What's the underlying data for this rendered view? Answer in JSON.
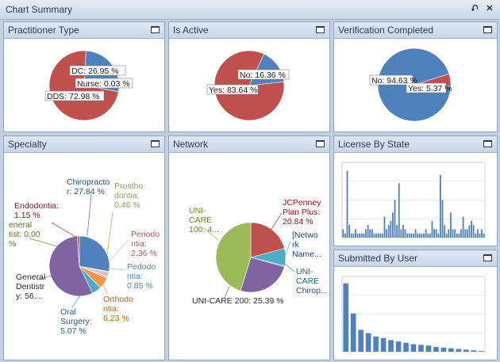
{
  "window": {
    "title": "Chart Summary",
    "pin_icon": "pin-icon",
    "close_icon": "close-icon"
  },
  "panels": {
    "practitioner": {
      "title": "Practitioner Type"
    },
    "active": {
      "title": "Is Active"
    },
    "verification": {
      "title": "Verification Completed"
    },
    "specialty": {
      "title": "Specialty"
    },
    "network": {
      "title": "Network"
    },
    "license": {
      "title": "License By State"
    },
    "submitted": {
      "title": "Submitted By User"
    }
  },
  "chart_data": [
    {
      "type": "pie",
      "panel": "Practitioner Type",
      "slices": [
        {
          "label": "DC: 26.95 %",
          "value": 26.95,
          "color": "#4f81bd"
        },
        {
          "label": "Nurse: 0.03 %",
          "value": 0.03,
          "color": "#9bbb59"
        },
        {
          "label": "DDS: 72.98 %",
          "value": 72.98,
          "color": "#c0504d"
        }
      ]
    },
    {
      "type": "pie",
      "panel": "Is Active",
      "slices": [
        {
          "label": "No: 16.36 %",
          "value": 16.36,
          "color": "#4f81bd"
        },
        {
          "label": "Yes: 83.64 %",
          "value": 83.64,
          "color": "#c0504d"
        }
      ]
    },
    {
      "type": "pie",
      "panel": "Verification Completed",
      "slices": [
        {
          "label": "No: 94.63 %",
          "value": 94.63,
          "color": "#4f81bd"
        },
        {
          "label": "Yes: 5.37 %",
          "value": 5.37,
          "color": "#c0504d"
        }
      ]
    },
    {
      "type": "pie",
      "panel": "Specialty",
      "slices": [
        {
          "label": [
            "Chiropracto",
            "r: 27.84 %"
          ],
          "value": 27.84,
          "color": "#4f81bd",
          "text_color": "#1f4e79"
        },
        {
          "label": [
            "Prostho",
            "dontia:",
            "0.46 %"
          ],
          "value": 0.46,
          "color": "#9bbb59",
          "text_color": "#8aa05a"
        },
        {
          "label": [
            "Periodo",
            "ntia:",
            "2.36 %"
          ],
          "value": 2.36,
          "color": "#e6b9b8",
          "text_color": "#b05a58"
        },
        {
          "label": [
            "Pedodo",
            "ntia:",
            "0.85 %"
          ],
          "value": 0.85,
          "color": "#93cddd",
          "text_color": "#4f81bd"
        },
        {
          "label": [
            "Orthodo",
            "ntia:",
            "6.23 %"
          ],
          "value": 6.23,
          "color": "#f79646",
          "text_color": "#c06000"
        },
        {
          "label": [
            "Oral",
            "Surgery:",
            "5.07 %"
          ],
          "value": 5.07,
          "color": "#4bacc6",
          "text_color": "#1f5c8a"
        },
        {
          "label": [
            "General",
            "Dentistr",
            "y: 56...."
          ],
          "value": 56.04,
          "color": "#8064a2",
          "text_color": "#2a2a2a"
        },
        {
          "label": [
            "eneral",
            "tist: 0.00",
            "%"
          ],
          "value": 0.0,
          "color": "#77933c",
          "text_color": "#5a7a1a"
        },
        {
          "label": [
            "Endodontia:",
            "1.15 %"
          ],
          "value": 1.15,
          "color": "#c0504d",
          "text_color": "#8a1010"
        }
      ]
    },
    {
      "type": "pie",
      "panel": "Network",
      "slices": [
        {
          "label": [
            "JCPenney",
            "Plan Plus:",
            "20.84 %"
          ],
          "value": 20.84,
          "color": "#c0504d",
          "text_color": "#a01010"
        },
        {
          "label": [
            "[Netwo",
            "rk",
            "Name..."
          ],
          "value": 8.0,
          "color": "#4bacc6",
          "text_color": "#1f3e8a"
        },
        {
          "label": [
            "UNI-",
            "CARE",
            "Chirop..."
          ],
          "value": 0.5,
          "color": "#4f81bd",
          "text_color": "#1f5c8a"
        },
        {
          "label": [
            "UNI-CARE 200: 25.39 %"
          ],
          "value": 25.39,
          "color": "#8064a2",
          "text_color": "#2a2a2a"
        },
        {
          "label": [
            "UNI-",
            "CARE",
            "100: 4..."
          ],
          "value": 45.27,
          "color": "#9bbb59",
          "text_color": "#6a8a20"
        }
      ]
    },
    {
      "type": "bar",
      "panel": "License By State",
      "values": [
        2,
        1,
        16,
        3,
        1,
        1,
        2,
        1,
        1,
        1,
        1,
        2,
        3,
        2,
        2,
        1,
        1,
        1,
        1,
        1,
        5,
        2,
        3,
        4,
        6,
        9,
        3,
        13,
        2,
        3,
        2,
        1,
        1,
        1,
        1,
        2,
        1,
        1,
        1,
        1,
        2,
        1,
        1,
        4,
        2,
        2,
        1,
        15,
        9,
        3,
        1,
        2,
        6,
        2,
        2,
        1,
        1,
        2,
        5,
        2,
        2,
        3,
        4,
        3,
        1,
        2,
        1,
        2,
        1
      ],
      "ylim": [
        0,
        18
      ]
    },
    {
      "type": "bar",
      "panel": "Submitted By User",
      "values": [
        100,
        56,
        32,
        27,
        22,
        20,
        17,
        15,
        13,
        11,
        10,
        9,
        7,
        6,
        5,
        4,
        3,
        2,
        1
      ],
      "ylim": [
        0,
        110
      ]
    }
  ]
}
